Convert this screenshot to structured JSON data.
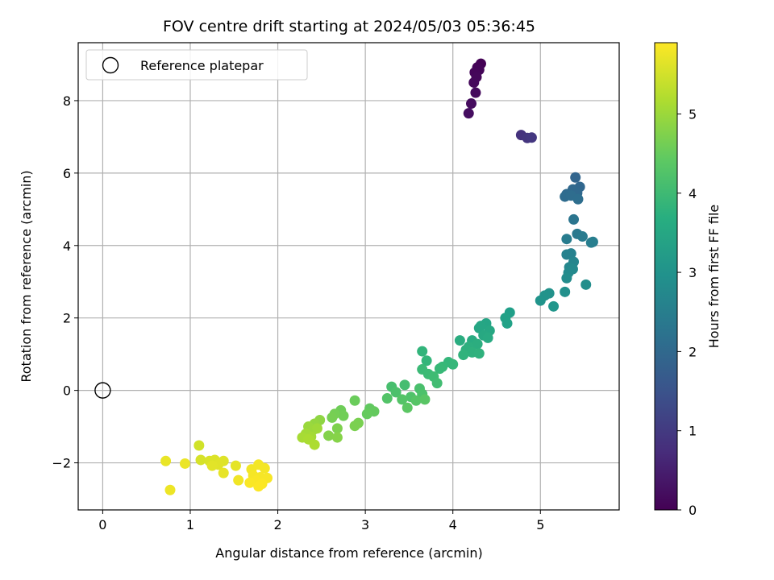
{
  "chart_data": {
    "type": "scatter",
    "title": "FOV centre drift starting at 2024/05/03 05:36:45",
    "xlabel": "Angular distance from reference (arcmin)",
    "ylabel": "Rotation from reference (arcmin)",
    "xlim": [
      -0.28,
      5.9
    ],
    "ylim": [
      -3.3,
      9.6
    ],
    "xticks": [
      0,
      1,
      2,
      3,
      4,
      5
    ],
    "yticks": [
      -2,
      0,
      2,
      4,
      6,
      8
    ],
    "grid": true,
    "legend": {
      "placement": "upper-left",
      "entries": [
        {
          "label": "Reference platepar",
          "marker": "open-circle"
        }
      ]
    },
    "reference_point": {
      "x": 0,
      "y": 0
    },
    "colorbar": {
      "label": "Hours from first FF file",
      "colormap": "viridis",
      "range": [
        0,
        5.9
      ],
      "ticks": [
        0,
        1,
        2,
        3,
        4,
        5
      ]
    },
    "points": [
      {
        "x": 4.32,
        "y": 9.02,
        "t": 0.02
      },
      {
        "x": 4.28,
        "y": 8.92,
        "t": 0.05
      },
      {
        "x": 4.3,
        "y": 8.85,
        "t": 0.07
      },
      {
        "x": 4.25,
        "y": 8.78,
        "t": 0.09
      },
      {
        "x": 4.27,
        "y": 8.65,
        "t": 0.11
      },
      {
        "x": 4.24,
        "y": 8.5,
        "t": 0.13
      },
      {
        "x": 4.26,
        "y": 8.22,
        "t": 0.16
      },
      {
        "x": 4.21,
        "y": 7.92,
        "t": 0.19
      },
      {
        "x": 4.18,
        "y": 7.65,
        "t": 0.21
      },
      {
        "x": 4.78,
        "y": 7.05,
        "t": 0.85
      },
      {
        "x": 4.85,
        "y": 6.97,
        "t": 0.9
      },
      {
        "x": 4.9,
        "y": 6.98,
        "t": 0.95
      },
      {
        "x": 5.4,
        "y": 5.88,
        "t": 1.9
      },
      {
        "x": 5.45,
        "y": 5.62,
        "t": 1.95
      },
      {
        "x": 5.37,
        "y": 5.55,
        "t": 1.98
      },
      {
        "x": 5.42,
        "y": 5.45,
        "t": 2.0
      },
      {
        "x": 5.3,
        "y": 5.42,
        "t": 2.05
      },
      {
        "x": 5.28,
        "y": 5.35,
        "t": 2.08
      },
      {
        "x": 5.35,
        "y": 5.38,
        "t": 2.1
      },
      {
        "x": 5.43,
        "y": 5.28,
        "t": 2.12
      },
      {
        "x": 5.38,
        "y": 4.72,
        "t": 2.3
      },
      {
        "x": 5.42,
        "y": 4.32,
        "t": 2.4
      },
      {
        "x": 5.48,
        "y": 4.25,
        "t": 2.45
      },
      {
        "x": 5.3,
        "y": 4.18,
        "t": 2.48
      },
      {
        "x": 5.6,
        "y": 4.1,
        "t": 2.5
      },
      {
        "x": 5.58,
        "y": 4.08,
        "t": 2.52
      },
      {
        "x": 5.35,
        "y": 3.78,
        "t": 2.6
      },
      {
        "x": 5.3,
        "y": 3.75,
        "t": 2.62
      },
      {
        "x": 5.38,
        "y": 3.55,
        "t": 2.7
      },
      {
        "x": 5.33,
        "y": 3.4,
        "t": 2.75
      },
      {
        "x": 5.37,
        "y": 3.35,
        "t": 2.78
      },
      {
        "x": 5.32,
        "y": 3.25,
        "t": 2.8
      },
      {
        "x": 5.3,
        "y": 3.1,
        "t": 2.85
      },
      {
        "x": 5.52,
        "y": 2.92,
        "t": 2.9
      },
      {
        "x": 5.28,
        "y": 2.72,
        "t": 2.95
      },
      {
        "x": 5.1,
        "y": 2.68,
        "t": 3.0
      },
      {
        "x": 5.05,
        "y": 2.62,
        "t": 3.02
      },
      {
        "x": 5.0,
        "y": 2.48,
        "t": 3.05
      },
      {
        "x": 5.15,
        "y": 2.32,
        "t": 3.08
      },
      {
        "x": 4.65,
        "y": 2.15,
        "t": 3.3
      },
      {
        "x": 4.6,
        "y": 2.0,
        "t": 3.35
      },
      {
        "x": 4.62,
        "y": 1.85,
        "t": 3.38
      },
      {
        "x": 4.38,
        "y": 1.85,
        "t": 3.45
      },
      {
        "x": 4.32,
        "y": 1.78,
        "t": 3.48
      },
      {
        "x": 4.3,
        "y": 1.72,
        "t": 3.5
      },
      {
        "x": 4.42,
        "y": 1.65,
        "t": 3.52
      },
      {
        "x": 4.35,
        "y": 1.52,
        "t": 3.55
      },
      {
        "x": 4.4,
        "y": 1.45,
        "t": 3.58
      },
      {
        "x": 4.22,
        "y": 1.38,
        "t": 3.62
      },
      {
        "x": 4.08,
        "y": 1.38,
        "t": 3.65
      },
      {
        "x": 4.28,
        "y": 1.28,
        "t": 3.68
      },
      {
        "x": 4.18,
        "y": 1.2,
        "t": 3.7
      },
      {
        "x": 4.15,
        "y": 1.12,
        "t": 3.72
      },
      {
        "x": 4.22,
        "y": 1.05,
        "t": 3.75
      },
      {
        "x": 4.3,
        "y": 1.02,
        "t": 3.78
      },
      {
        "x": 4.12,
        "y": 0.98,
        "t": 3.8
      },
      {
        "x": 3.65,
        "y": 1.08,
        "t": 3.85
      },
      {
        "x": 3.7,
        "y": 0.82,
        "t": 3.88
      },
      {
        "x": 3.95,
        "y": 0.78,
        "t": 3.9
      },
      {
        "x": 4.0,
        "y": 0.72,
        "t": 3.92
      },
      {
        "x": 3.88,
        "y": 0.65,
        "t": 3.95
      },
      {
        "x": 3.85,
        "y": 0.6,
        "t": 3.97
      },
      {
        "x": 3.65,
        "y": 0.58,
        "t": 4.0
      },
      {
        "x": 3.72,
        "y": 0.45,
        "t": 4.02
      },
      {
        "x": 3.78,
        "y": 0.38,
        "t": 4.05
      },
      {
        "x": 3.82,
        "y": 0.2,
        "t": 4.08
      },
      {
        "x": 3.45,
        "y": 0.15,
        "t": 4.12
      },
      {
        "x": 3.3,
        "y": 0.1,
        "t": 4.15
      },
      {
        "x": 3.62,
        "y": 0.05,
        "t": 4.18
      },
      {
        "x": 3.35,
        "y": -0.05,
        "t": 4.2
      },
      {
        "x": 3.65,
        "y": -0.1,
        "t": 4.22
      },
      {
        "x": 3.52,
        "y": -0.18,
        "t": 4.25
      },
      {
        "x": 3.25,
        "y": -0.22,
        "t": 4.28
      },
      {
        "x": 3.42,
        "y": -0.25,
        "t": 4.3
      },
      {
        "x": 3.58,
        "y": -0.28,
        "t": 4.32
      },
      {
        "x": 3.68,
        "y": -0.25,
        "t": 4.35
      },
      {
        "x": 3.48,
        "y": -0.48,
        "t": 4.38
      },
      {
        "x": 3.05,
        "y": -0.5,
        "t": 4.45
      },
      {
        "x": 3.1,
        "y": -0.58,
        "t": 4.48
      },
      {
        "x": 3.02,
        "y": -0.65,
        "t": 4.5
      },
      {
        "x": 2.88,
        "y": -0.28,
        "t": 4.55
      },
      {
        "x": 2.72,
        "y": -0.55,
        "t": 4.6
      },
      {
        "x": 2.75,
        "y": -0.7,
        "t": 4.62
      },
      {
        "x": 2.65,
        "y": -0.65,
        "t": 4.65
      },
      {
        "x": 2.62,
        "y": -0.75,
        "t": 4.68
      },
      {
        "x": 2.92,
        "y": -0.9,
        "t": 4.7
      },
      {
        "x": 2.88,
        "y": -0.98,
        "t": 4.72
      },
      {
        "x": 2.68,
        "y": -1.05,
        "t": 4.75
      },
      {
        "x": 2.58,
        "y": -1.25,
        "t": 4.8
      },
      {
        "x": 2.68,
        "y": -1.3,
        "t": 4.82
      },
      {
        "x": 2.48,
        "y": -0.82,
        "t": 4.9
      },
      {
        "x": 2.42,
        "y": -0.92,
        "t": 4.95
      },
      {
        "x": 2.35,
        "y": -1.0,
        "t": 5.0
      },
      {
        "x": 2.4,
        "y": -1.1,
        "t": 5.02
      },
      {
        "x": 2.45,
        "y": -1.05,
        "t": 5.05
      },
      {
        "x": 2.32,
        "y": -1.2,
        "t": 5.08
      },
      {
        "x": 2.38,
        "y": -1.28,
        "t": 5.1
      },
      {
        "x": 2.28,
        "y": -1.3,
        "t": 5.12
      },
      {
        "x": 2.35,
        "y": -1.35,
        "t": 5.15
      },
      {
        "x": 2.42,
        "y": -1.5,
        "t": 5.18
      },
      {
        "x": 1.1,
        "y": -1.52,
        "t": 5.5
      },
      {
        "x": 1.12,
        "y": -1.92,
        "t": 5.55
      },
      {
        "x": 1.22,
        "y": -1.95,
        "t": 5.58
      },
      {
        "x": 1.28,
        "y": -1.92,
        "t": 5.6
      },
      {
        "x": 1.38,
        "y": -1.95,
        "t": 5.62
      },
      {
        "x": 1.32,
        "y": -2.05,
        "t": 5.64
      },
      {
        "x": 1.25,
        "y": -2.08,
        "t": 5.66
      },
      {
        "x": 1.52,
        "y": -2.08,
        "t": 5.68
      },
      {
        "x": 1.38,
        "y": -2.28,
        "t": 5.7
      },
      {
        "x": 0.72,
        "y": -1.95,
        "t": 5.72
      },
      {
        "x": 0.94,
        "y": -2.02,
        "t": 5.74
      },
      {
        "x": 0.77,
        "y": -2.75,
        "t": 5.76
      },
      {
        "x": 1.55,
        "y": -2.48,
        "t": 5.78
      },
      {
        "x": 1.7,
        "y": -2.18,
        "t": 5.8
      },
      {
        "x": 1.78,
        "y": -2.05,
        "t": 5.81
      },
      {
        "x": 1.85,
        "y": -2.15,
        "t": 5.82
      },
      {
        "x": 1.72,
        "y": -2.35,
        "t": 5.83
      },
      {
        "x": 1.8,
        "y": -2.4,
        "t": 5.84
      },
      {
        "x": 1.88,
        "y": -2.42,
        "t": 5.85
      },
      {
        "x": 1.75,
        "y": -2.5,
        "t": 5.86
      },
      {
        "x": 1.68,
        "y": -2.55,
        "t": 5.87
      },
      {
        "x": 1.82,
        "y": -2.58,
        "t": 5.88
      },
      {
        "x": 1.78,
        "y": -2.65,
        "t": 5.89
      }
    ]
  }
}
